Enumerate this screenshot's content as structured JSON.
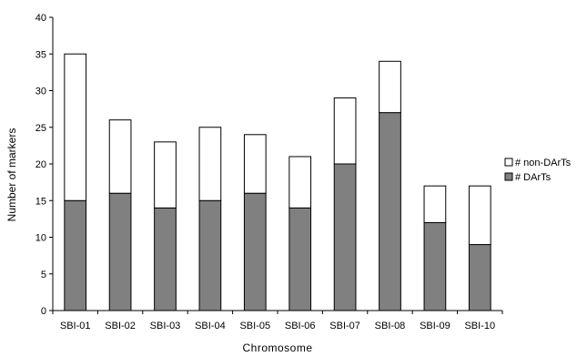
{
  "chart_data": {
    "type": "bar",
    "stacked": true,
    "categories": [
      "SBI-01",
      "SBI-02",
      "SBI-03",
      "SBI-04",
      "SBI-05",
      "SBI-06",
      "SBI-07",
      "SBI-08",
      "SBI-09",
      "SBI-10"
    ],
    "series": [
      {
        "name": "# DArTs",
        "values": [
          15,
          16,
          14,
          15,
          16,
          14,
          20,
          27,
          12,
          9
        ],
        "color": "#808080"
      },
      {
        "name": "# non-DArTs",
        "values": [
          20,
          10,
          9,
          10,
          8,
          7,
          9,
          7,
          5,
          8
        ],
        "color": "#ffffff"
      }
    ],
    "xlabel": "Chromosome",
    "ylabel": "Number of markers",
    "ylim": [
      0,
      40
    ],
    "yticks": [
      0,
      5,
      10,
      15,
      20,
      25,
      30,
      35,
      40
    ],
    "grid": false,
    "legend": {
      "position": "right",
      "order": [
        "# non-DArTs",
        "# DArTs"
      ]
    }
  }
}
